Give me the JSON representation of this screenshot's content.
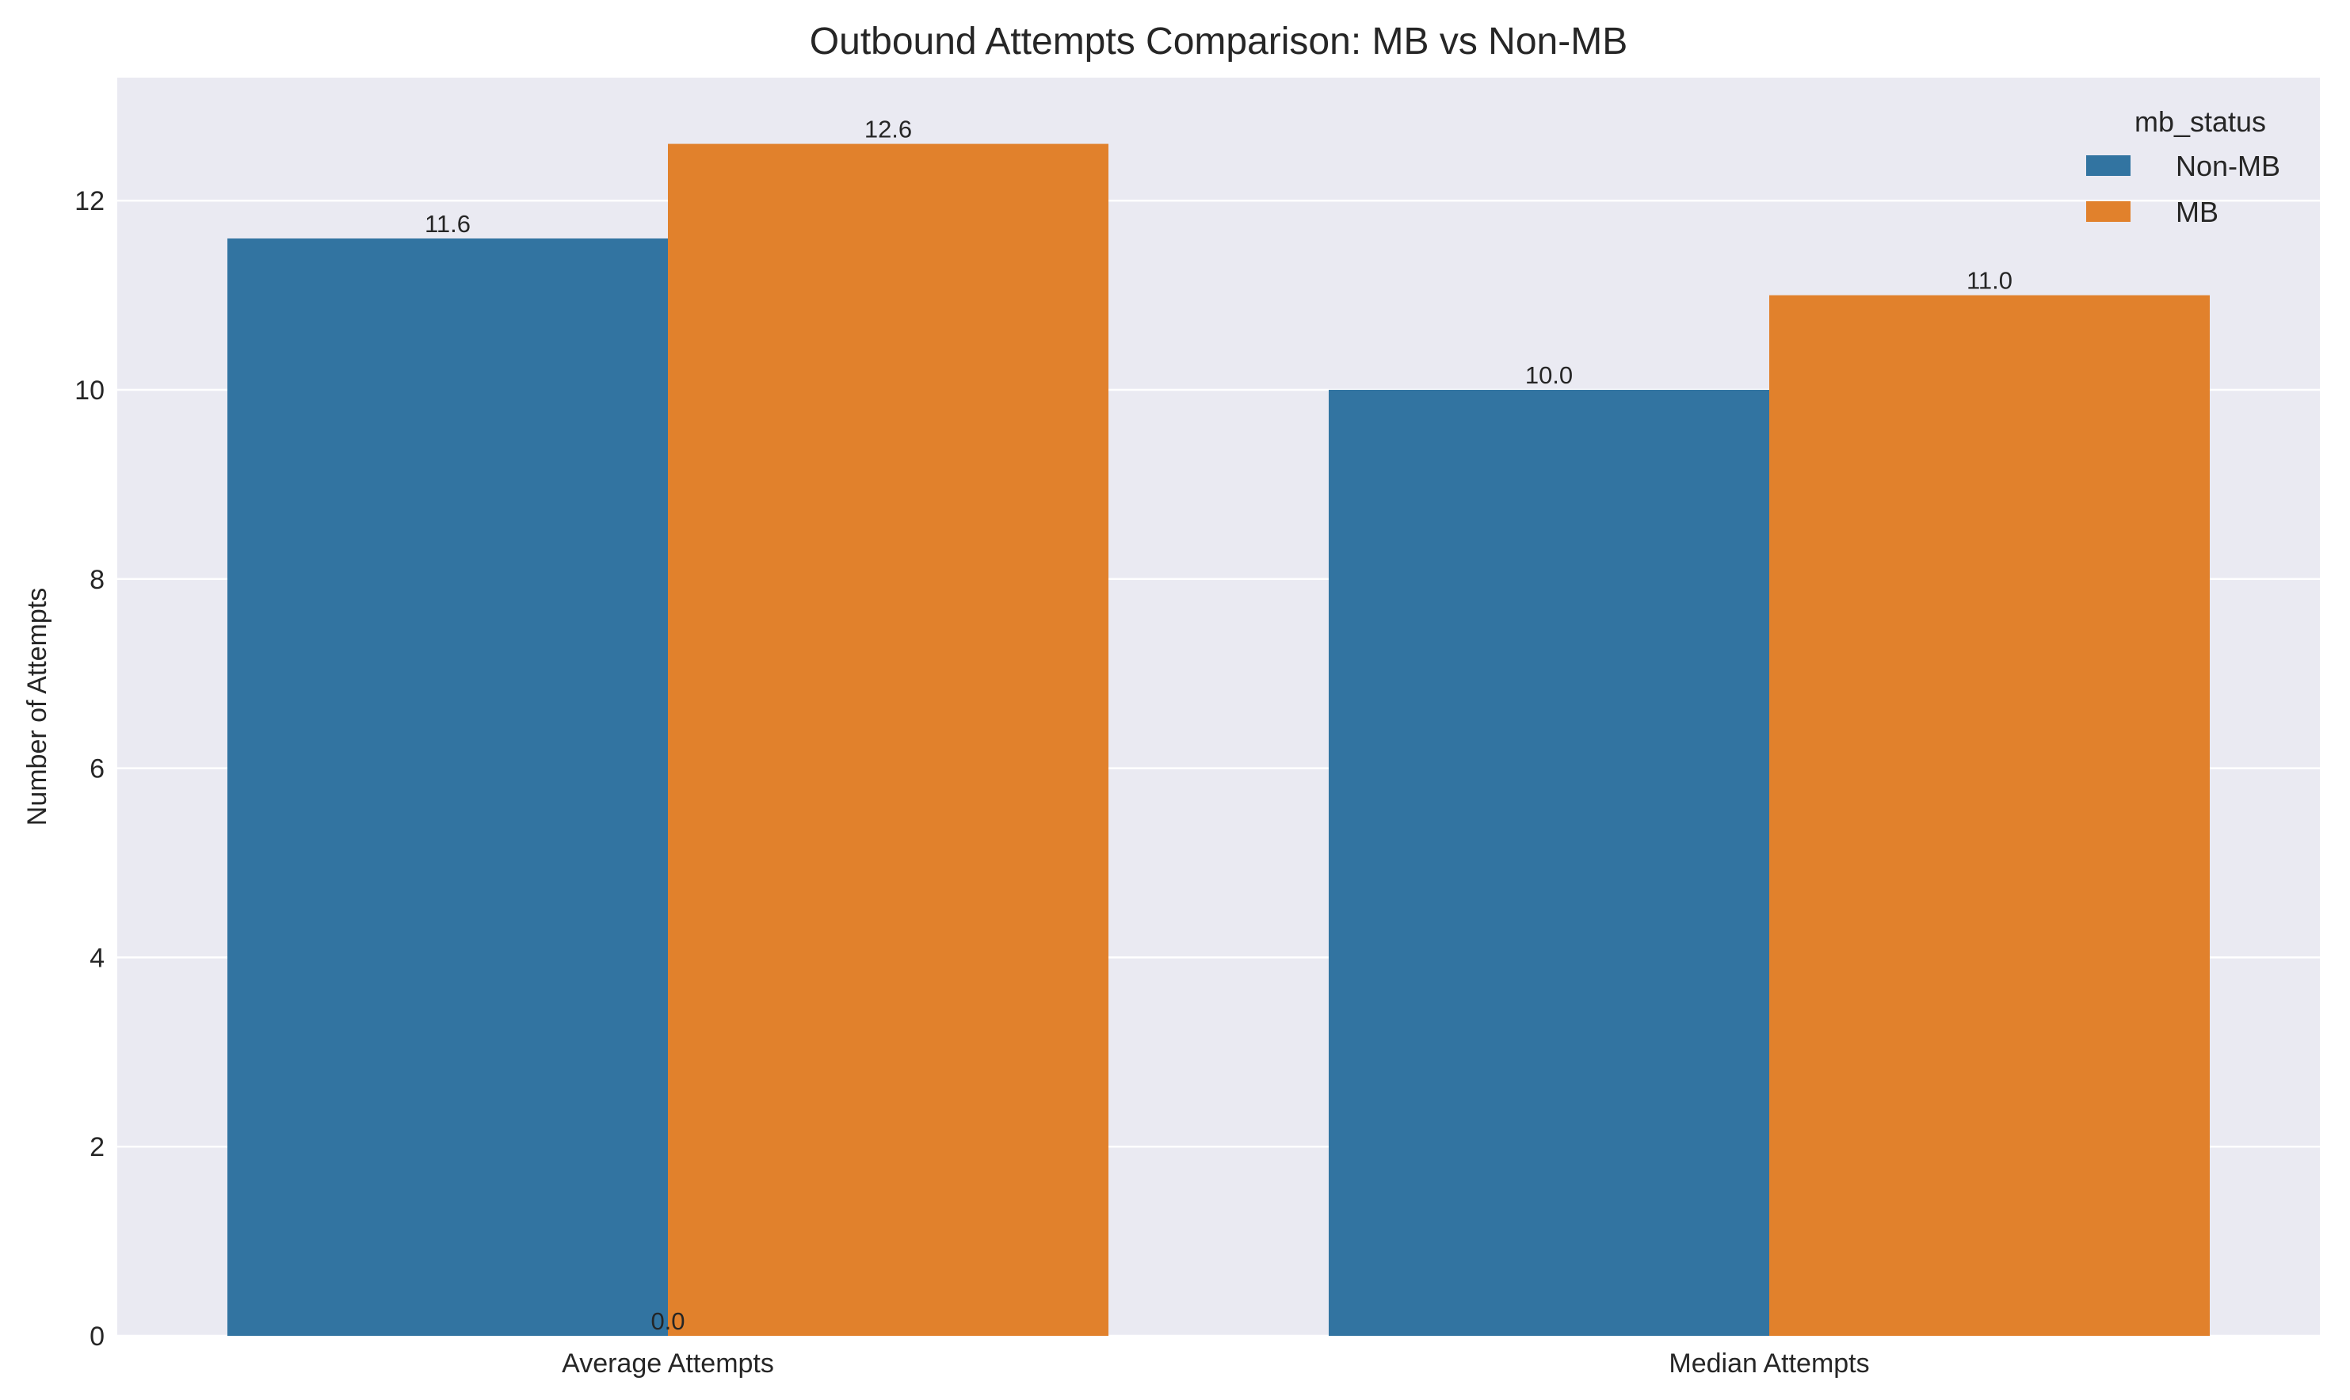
{
  "chart_data": {
    "type": "bar",
    "title": "Outbound Attempts Comparison: MB vs Non-MB",
    "xlabel": "",
    "ylabel": "Number of Attempts",
    "categories": [
      "Average Attempts",
      "Median Attempts"
    ],
    "series": [
      {
        "name": "Non-MB",
        "values": [
          11.6,
          10.0
        ],
        "color": "#3274a1"
      },
      {
        "name": "MB",
        "values": [
          12.6,
          11.0
        ],
        "color": "#e1812c"
      }
    ],
    "data_labels": [
      {
        "text": "11.6",
        "series": 0,
        "category": 0
      },
      {
        "text": "12.6",
        "series": 1,
        "category": 0
      },
      {
        "text": "10.0",
        "series": 0,
        "category": 1
      },
      {
        "text": "11.0",
        "series": 1,
        "category": 1
      },
      {
        "text": "0.0",
        "series": null,
        "category": 0,
        "value": 0
      }
    ],
    "ylim": [
      0,
      13.3
    ],
    "yticks": [
      0,
      2,
      4,
      6,
      8,
      10,
      12
    ],
    "grid": true,
    "grid_axis": "y",
    "background_color": "#eaeaf2",
    "legend": {
      "title": "mb_status",
      "placement": "upper right",
      "entries": [
        "Non-MB",
        "MB"
      ]
    }
  }
}
